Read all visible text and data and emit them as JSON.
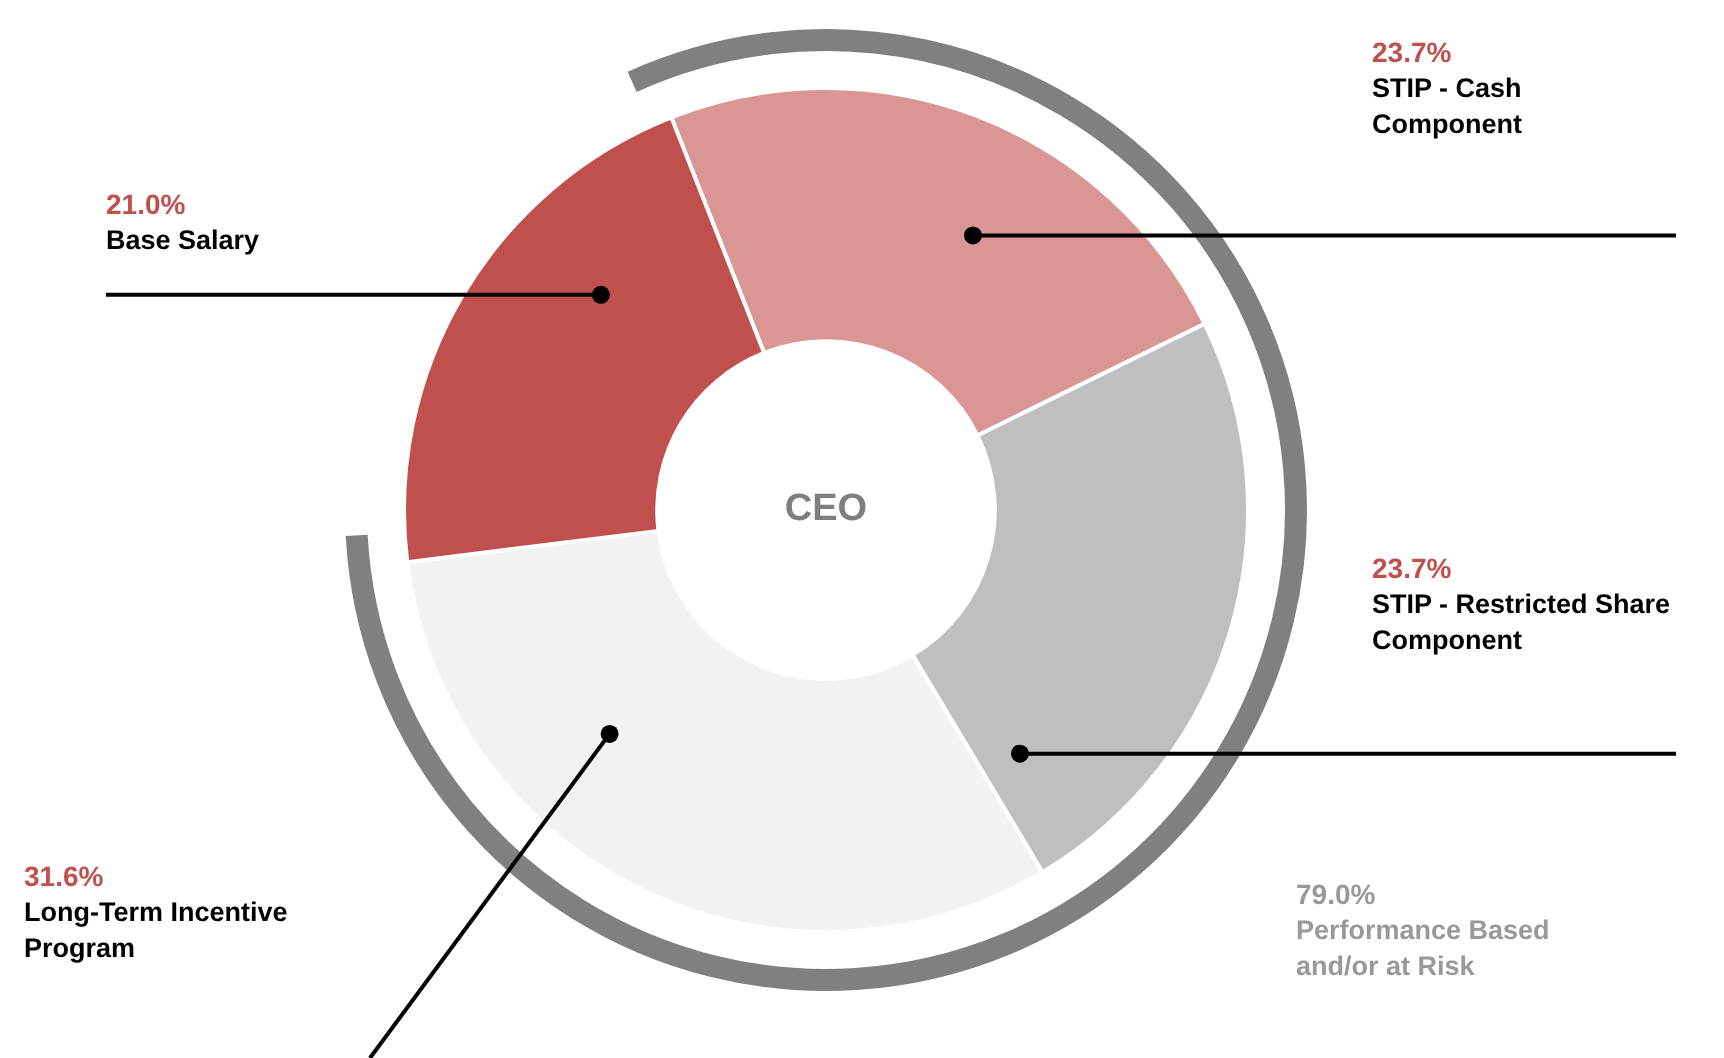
{
  "chart_data": {
    "type": "donut",
    "title": "CEO",
    "categories": [
      "STIP - Cash Component",
      "STIP - Restricted Share Component",
      "Long-Term Incentive Program",
      "Base Salary"
    ],
    "values": [
      23.7,
      23.7,
      31.6,
      21.0
    ],
    "colors": [
      "#d99694",
      "#bfbfbf",
      "#f2f2f2",
      "#c0504d"
    ],
    "value_labels": [
      "23.7%",
      "23.7%",
      "31.6%",
      "21.0%"
    ],
    "annotations": [
      "79.0%",
      "Performance Based and/or at Risk"
    ],
    "legend": false
  }
}
